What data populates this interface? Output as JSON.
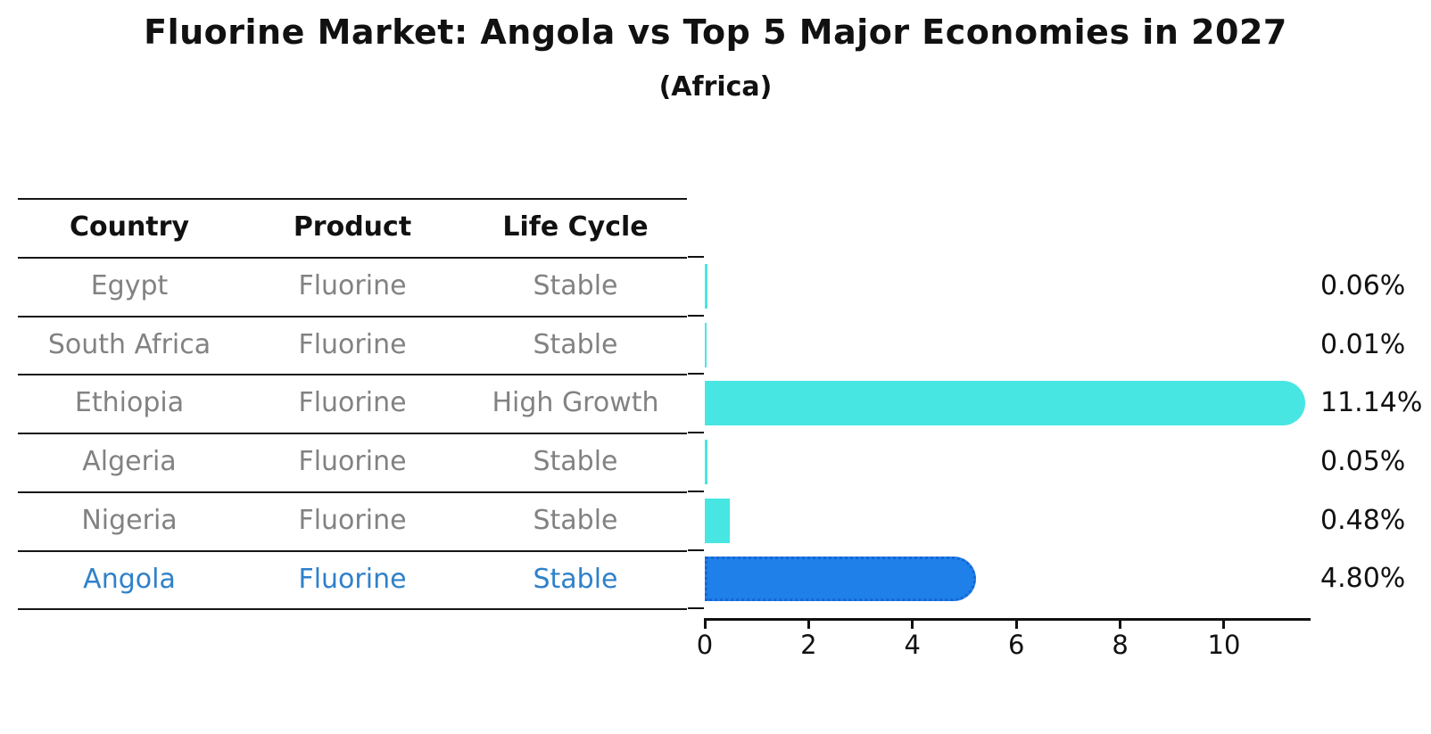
{
  "title": "Fluorine Market: Angola vs Top 5 Major Economies in 2027",
  "subtitle": "(Africa)",
  "table": {
    "headers": [
      "Country",
      "Product",
      "Life Cycle"
    ],
    "rows": [
      {
        "country": "Egypt",
        "product": "Fluorine",
        "life_cycle": "Stable"
      },
      {
        "country": "South Africa",
        "product": "Fluorine",
        "life_cycle": "Stable"
      },
      {
        "country": "Ethiopia",
        "product": "Fluorine",
        "life_cycle": "High Growth"
      },
      {
        "country": "Algeria",
        "product": "Fluorine",
        "life_cycle": "Stable"
      },
      {
        "country": "Nigeria",
        "product": "Fluorine",
        "life_cycle": "Stable"
      },
      {
        "country": "Angola",
        "product": "Fluorine",
        "life_cycle": "Stable"
      }
    ],
    "highlight_row": "Angola"
  },
  "chart_data": {
    "type": "bar",
    "orientation": "horizontal",
    "title": "Fluorine Market: Angola vs Top 5 Major Economies in 2027",
    "subtitle": "(Africa)",
    "categories": [
      "Egypt",
      "South Africa",
      "Ethiopia",
      "Algeria",
      "Nigeria",
      "Angola"
    ],
    "values": [
      0.06,
      0.01,
      11.14,
      0.05,
      0.48,
      4.8
    ],
    "value_labels": [
      "0.06%",
      "0.01%",
      "11.14%",
      "0.05%",
      "0.48%",
      "4.80%"
    ],
    "x_ticks": [
      0,
      2,
      4,
      6,
      8,
      10
    ],
    "xlim": [
      0,
      11.65
    ],
    "grid": false,
    "legend": "none",
    "bar_color": "#48e6e2",
    "highlight_index": 5,
    "highlight_color": "#1e80e8",
    "highlight_border_color": "#1566d8",
    "highlight_border_style": "dotted"
  },
  "colors": {
    "text_primary": "#111111",
    "text_muted": "#828282",
    "highlight_text": "#2f81c9",
    "line": "#161616",
    "background": "#ffffff"
  }
}
